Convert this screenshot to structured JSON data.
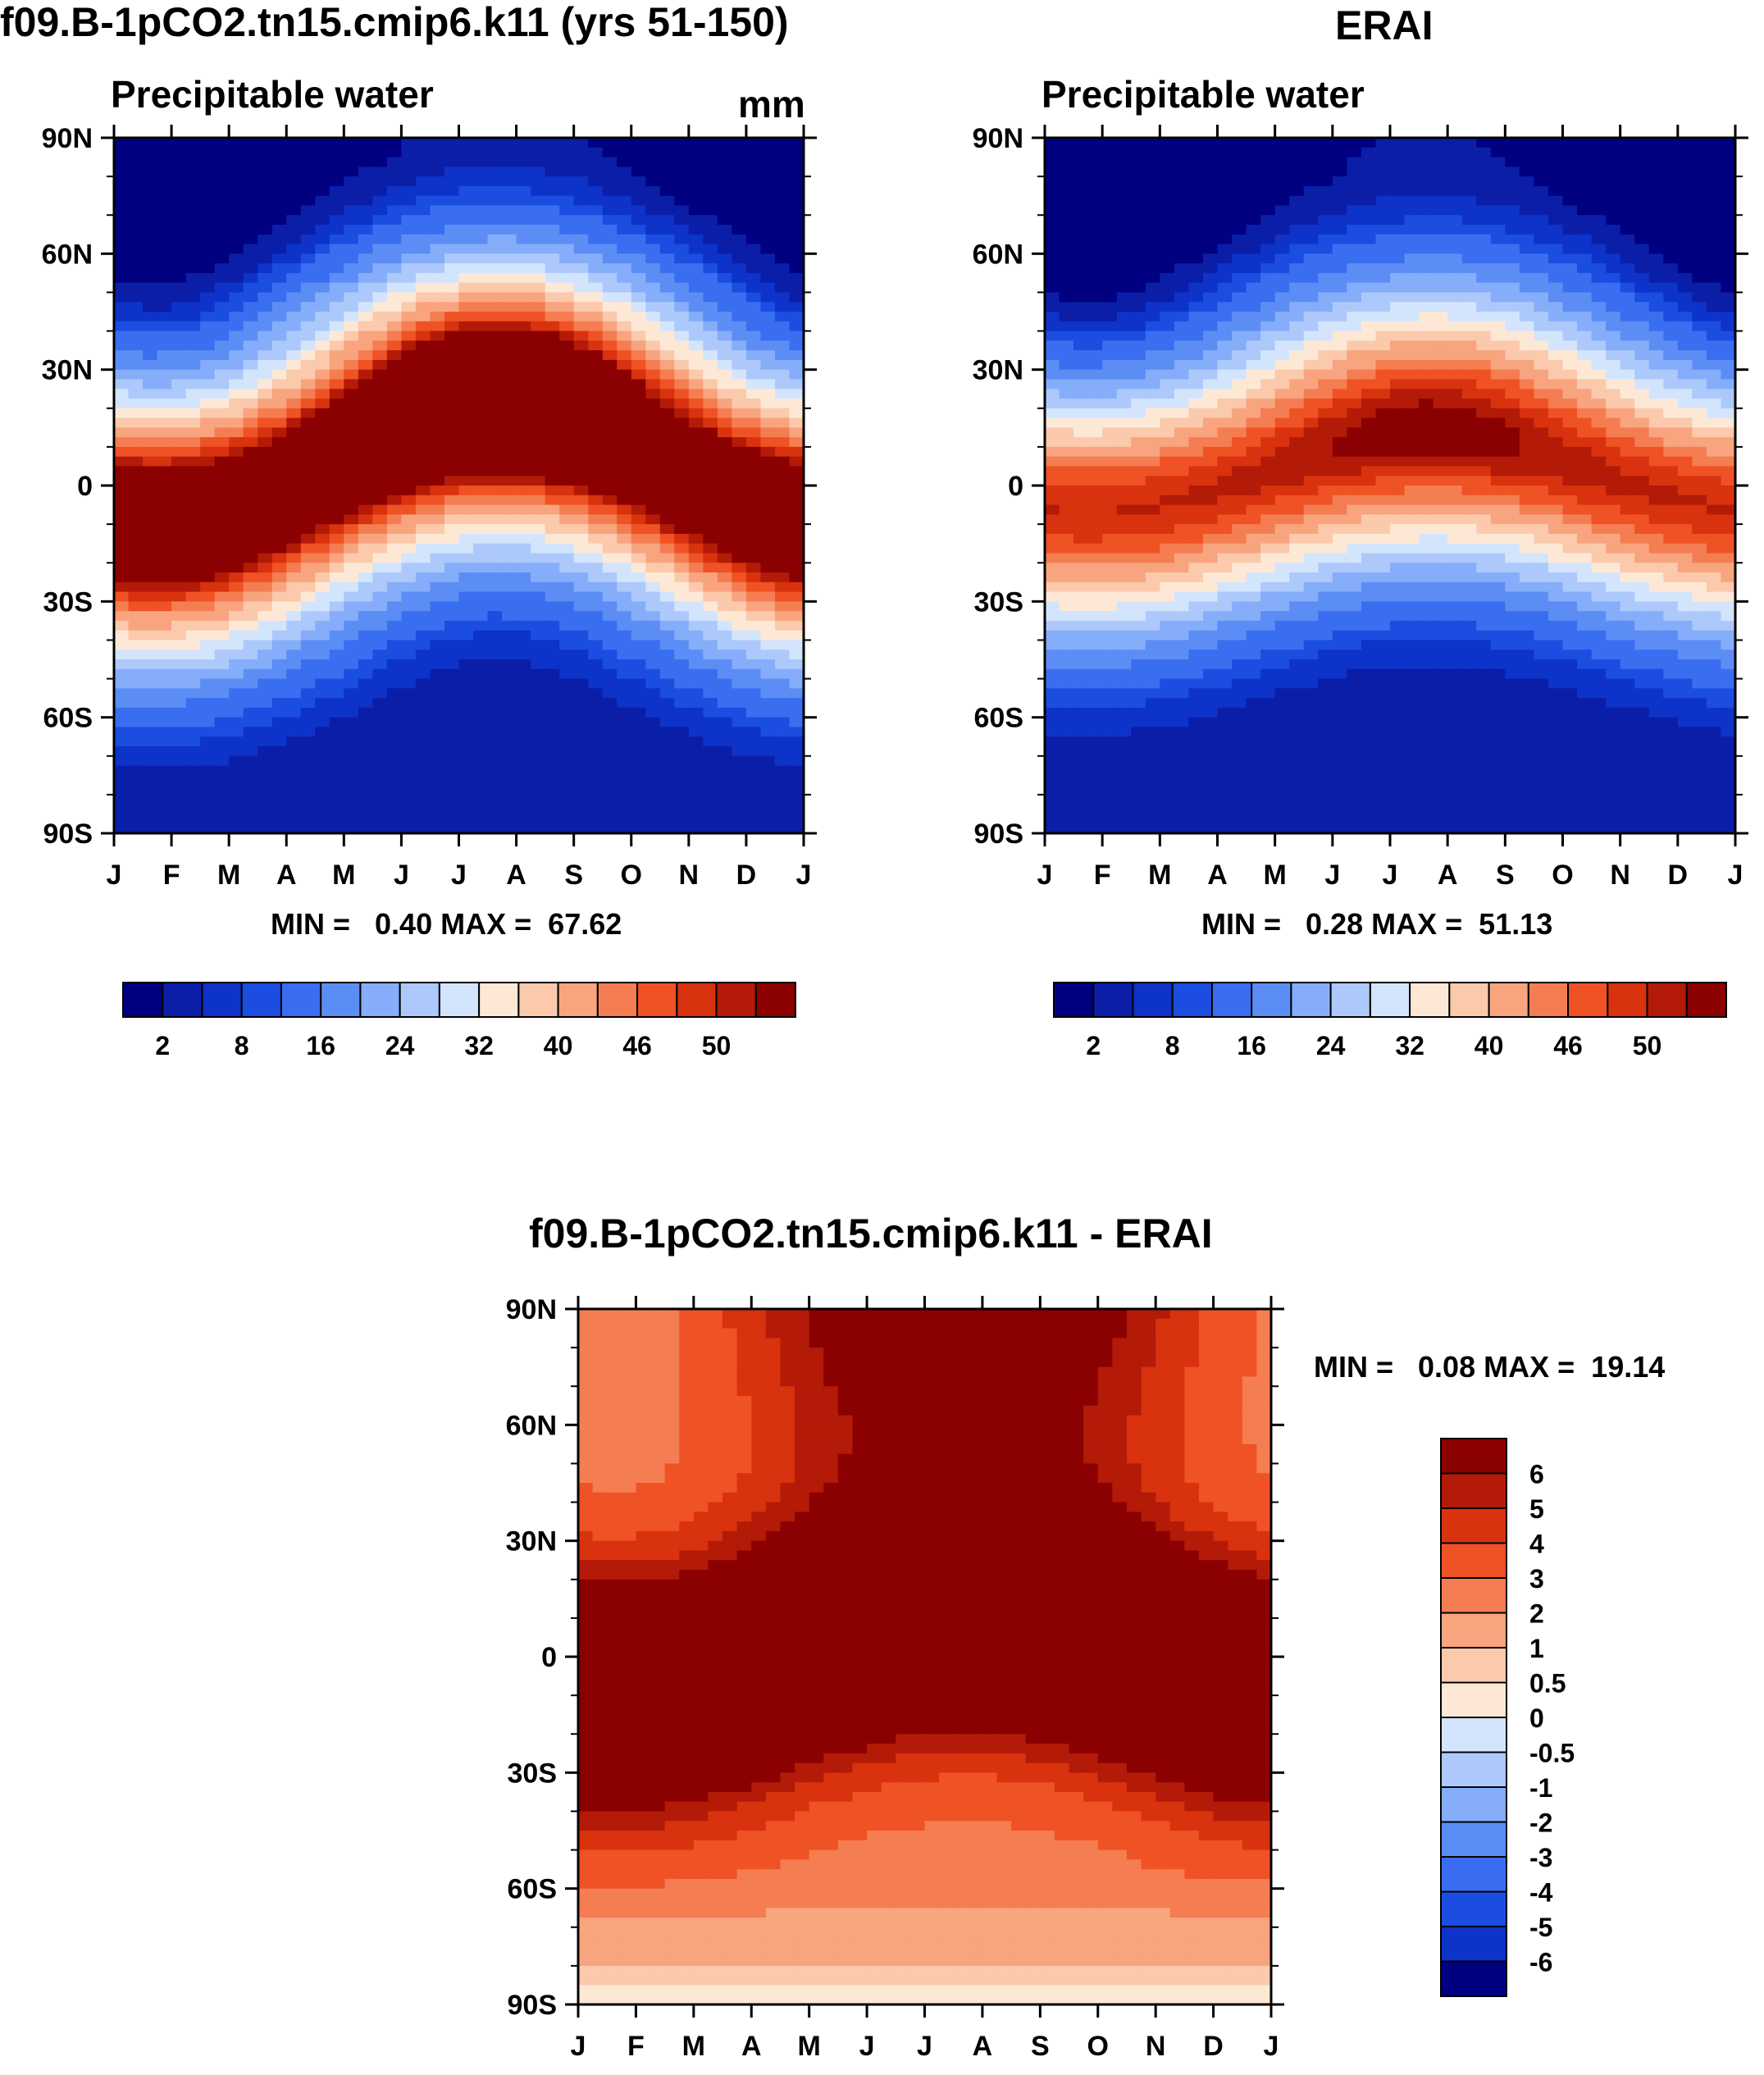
{
  "panel_left": {
    "title": "f09.B-1pCO2.tn15.cmip6.k11 (yrs 51-150)",
    "subtitle": "Precipitable water",
    "units": "mm",
    "min_label": "MIN = ",
    "min_value": "0.40",
    "max_label": "MAX = ",
    "max_value": "67.62"
  },
  "panel_right": {
    "title": "ERAI",
    "subtitle": "Precipitable water",
    "min_label": "MIN = ",
    "min_value": "0.28",
    "max_label": "MAX = ",
    "max_value": "51.13"
  },
  "panel_diff": {
    "title": "f09.B-1pCO2.tn15.cmip6.k11 - ERAI",
    "min_label": "MIN = ",
    "min_value": "0.08",
    "max_label": "MAX = ",
    "max_value": "19.14"
  },
  "chart_data": [
    {
      "type": "heatmap",
      "title": "f09.B-1pCO2.tn15.cmip6.k11 (yrs 51-150)",
      "subtitle": "Precipitable water",
      "units": "mm",
      "x_ticks": [
        "J",
        "F",
        "M",
        "A",
        "M",
        "J",
        "J",
        "A",
        "S",
        "O",
        "N",
        "D",
        "J"
      ],
      "y_ticks": [
        "90N",
        "60N",
        "30N",
        "0",
        "30S",
        "60S",
        "90S"
      ],
      "ylim": [
        -90,
        90
      ],
      "colorbar_labels": [
        "2",
        "8",
        "16",
        "24",
        "32",
        "40",
        "46",
        "50"
      ],
      "colorbar_colors": [
        "#000080",
        "#0a1ea8",
        "#0d33c9",
        "#1a4de0",
        "#3a6ef0",
        "#5c8df5",
        "#85adfa",
        "#adc9fb",
        "#d3e5fd",
        "#fde8d6",
        "#fbc9ab",
        "#f8a47f",
        "#f57d52",
        "#ef5224",
        "#d8320e",
        "#b31a07",
        "#8b0000"
      ],
      "min": 0.4,
      "max": 67.62
    },
    {
      "type": "heatmap",
      "title": "ERAI",
      "subtitle": "Precipitable water",
      "x_ticks": [
        "J",
        "F",
        "M",
        "A",
        "M",
        "J",
        "J",
        "A",
        "S",
        "O",
        "N",
        "D",
        "J"
      ],
      "y_ticks": [
        "90N",
        "60N",
        "30N",
        "0",
        "30S",
        "60S",
        "90S"
      ],
      "ylim": [
        -90,
        90
      ],
      "colorbar_labels": [
        "2",
        "8",
        "16",
        "24",
        "32",
        "40",
        "46",
        "50"
      ],
      "colorbar_colors": [
        "#000080",
        "#0a1ea8",
        "#0d33c9",
        "#1a4de0",
        "#3a6ef0",
        "#5c8df5",
        "#85adfa",
        "#adc9fb",
        "#d3e5fd",
        "#fde8d6",
        "#fbc9ab",
        "#f8a47f",
        "#f57d52",
        "#ef5224",
        "#d8320e",
        "#b31a07",
        "#8b0000"
      ],
      "min": 0.28,
      "max": 51.13
    },
    {
      "type": "heatmap",
      "title": "f09.B-1pCO2.tn15.cmip6.k11 - ERAI",
      "x_ticks": [
        "J",
        "F",
        "M",
        "A",
        "M",
        "J",
        "J",
        "A",
        "S",
        "O",
        "N",
        "D",
        "J"
      ],
      "y_ticks": [
        "90N",
        "60N",
        "30N",
        "0",
        "30S",
        "60S",
        "90S"
      ],
      "ylim": [
        -90,
        90
      ],
      "colorbar_labels": [
        "6",
        "5",
        "4",
        "3",
        "2",
        "1",
        "0.5",
        "0",
        "-0.5",
        "-1",
        "-2",
        "-3",
        "-4",
        "-5",
        "-6"
      ],
      "colorbar_colors": [
        "#8b0000",
        "#b31a07",
        "#d8320e",
        "#ef5224",
        "#f57d52",
        "#f8a47f",
        "#fbc9ab",
        "#fde8d6",
        "#d3e5fd",
        "#adc9fb",
        "#85adfa",
        "#5c8df5",
        "#3a6ef0",
        "#1a4de0",
        "#0d33c9",
        "#000080"
      ],
      "min": 0.08,
      "max": 19.14
    }
  ]
}
